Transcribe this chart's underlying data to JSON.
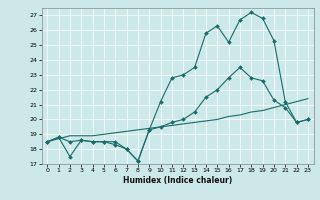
{
  "title": "",
  "xlabel": "Humidex (Indice chaleur)",
  "bg_color": "#cce8e8",
  "grid_color": "#ffffff",
  "line_color": "#1a6b6b",
  "xlim": [
    -0.5,
    23.5
  ],
  "ylim": [
    17,
    27.5
  ],
  "yticks": [
    17,
    18,
    19,
    20,
    21,
    22,
    23,
    24,
    25,
    26,
    27
  ],
  "xticks": [
    0,
    1,
    2,
    3,
    4,
    5,
    6,
    7,
    8,
    9,
    10,
    11,
    12,
    13,
    14,
    15,
    16,
    17,
    18,
    19,
    20,
    21,
    22,
    23
  ],
  "line1_x": [
    0,
    1,
    2,
    3,
    4,
    5,
    6,
    7,
    8,
    9,
    10,
    11,
    12,
    13,
    14,
    15,
    16,
    17,
    18,
    19,
    20,
    21,
    22,
    23
  ],
  "line1_y": [
    18.5,
    18.8,
    18.5,
    18.6,
    18.5,
    18.5,
    18.5,
    18.0,
    17.2,
    19.3,
    21.2,
    22.8,
    23.0,
    23.5,
    25.8,
    26.3,
    25.2,
    26.7,
    27.2,
    26.8,
    25.3,
    21.2,
    19.8,
    20.0
  ],
  "line2_x": [
    0,
    1,
    2,
    3,
    4,
    5,
    6,
    7,
    8,
    9,
    10,
    11,
    12,
    13,
    14,
    15,
    16,
    17,
    18,
    19,
    20,
    21,
    22,
    23
  ],
  "line2_y": [
    18.5,
    18.7,
    18.9,
    18.9,
    18.9,
    19.0,
    19.1,
    19.2,
    19.3,
    19.4,
    19.5,
    19.6,
    19.7,
    19.8,
    19.9,
    20.0,
    20.2,
    20.3,
    20.5,
    20.6,
    20.8,
    21.0,
    21.2,
    21.4
  ],
  "line3_x": [
    0,
    1,
    2,
    3,
    4,
    5,
    6,
    7,
    8,
    9,
    10,
    11,
    12,
    13,
    14,
    15,
    16,
    17,
    18,
    19,
    20,
    21,
    22,
    23
  ],
  "line3_y": [
    18.5,
    18.8,
    17.5,
    18.6,
    18.5,
    18.5,
    18.3,
    18.0,
    17.2,
    19.3,
    19.5,
    19.8,
    20.0,
    20.5,
    21.5,
    22.0,
    22.8,
    23.5,
    22.8,
    22.6,
    21.3,
    20.8,
    19.8,
    20.0
  ]
}
